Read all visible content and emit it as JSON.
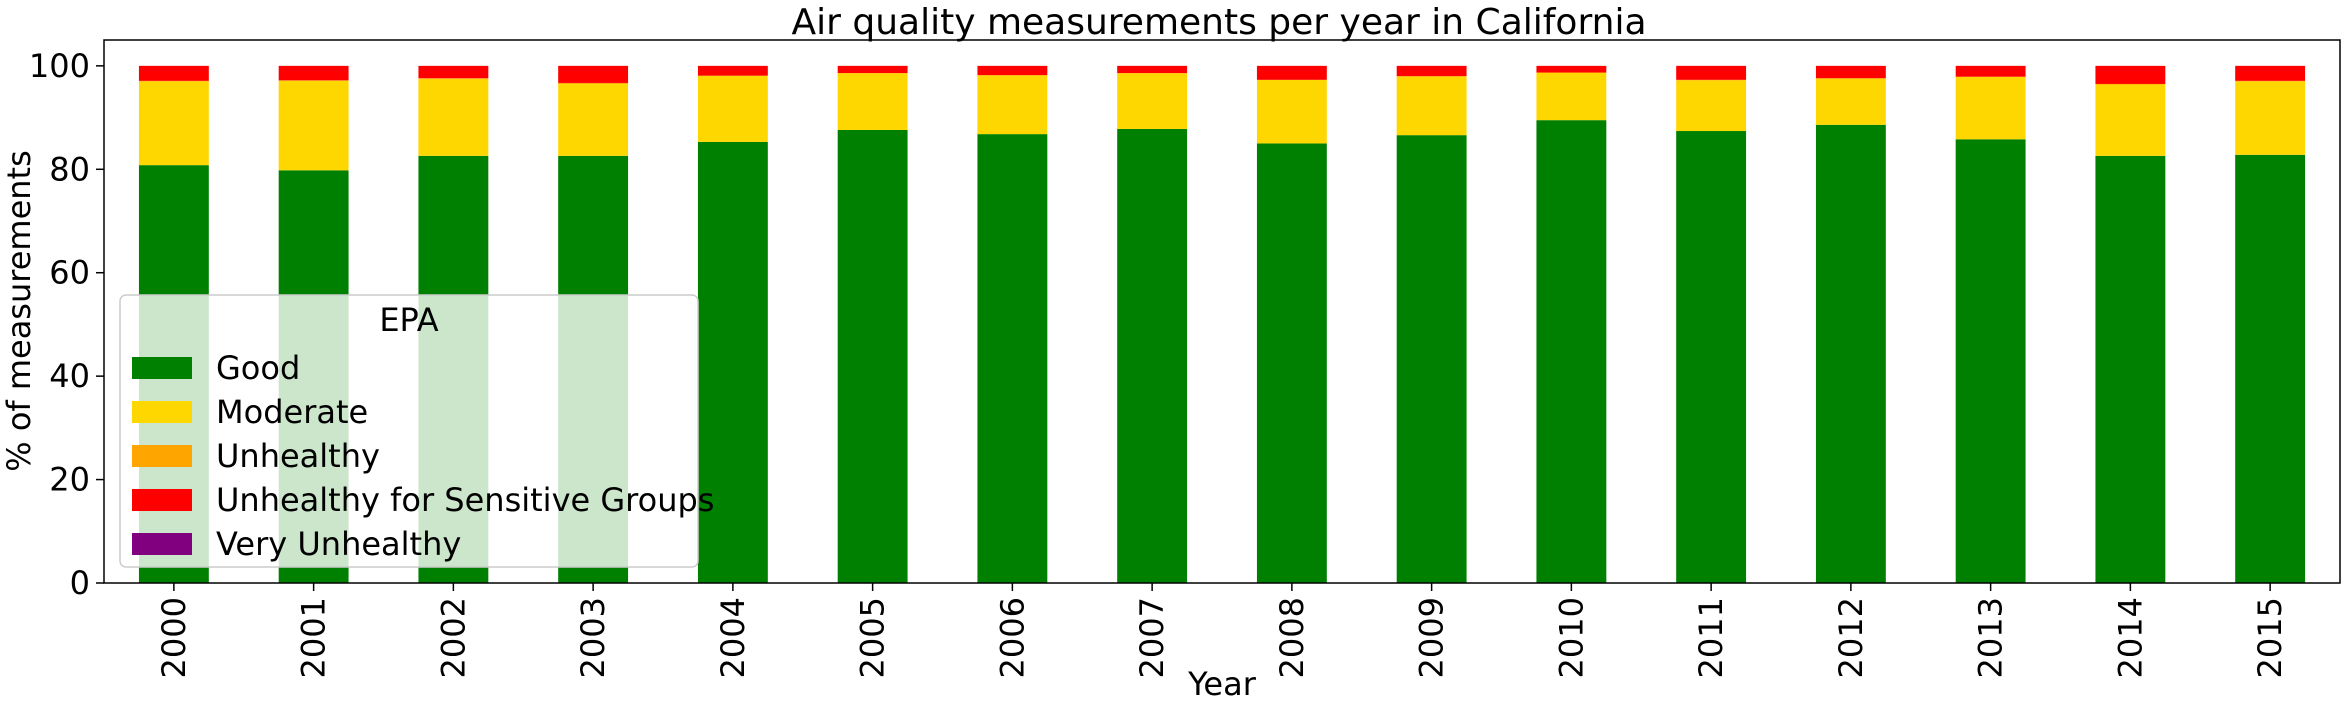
{
  "chart_data": {
    "type": "bar",
    "stacked": true,
    "title": "Air quality measurements per year in California",
    "xlabel": "Year",
    "ylabel": "% of measurements",
    "ylim": [
      0,
      105
    ],
    "yticks": [
      0,
      20,
      40,
      60,
      80,
      100
    ],
    "grid": false,
    "legend_title": "EPA",
    "legend_position": "lower-left",
    "categories": [
      "2000",
      "2001",
      "2002",
      "2003",
      "2004",
      "2005",
      "2006",
      "2007",
      "2008",
      "2009",
      "2010",
      "2011",
      "2012",
      "2013",
      "2014",
      "2015"
    ],
    "series": [
      {
        "name": "Good",
        "color": "#008000",
        "values": [
          80.8,
          79.8,
          82.6,
          82.6,
          85.3,
          87.6,
          86.8,
          87.8,
          85.0,
          86.6,
          89.5,
          87.4,
          88.6,
          85.8,
          82.6,
          82.8
        ]
      },
      {
        "name": "Moderate",
        "color": "#FFD700",
        "values": [
          16.2,
          17.3,
          14.9,
          13.9,
          12.8,
          11.0,
          11.4,
          10.8,
          12.3,
          11.4,
          9.2,
          9.8,
          9.0,
          12.1,
          13.8,
          14.2
        ]
      },
      {
        "name": "Unhealthy",
        "color": "#FFA500",
        "values": [
          0.1,
          0.1,
          0.1,
          0.2,
          0.0,
          0.0,
          0.0,
          0.0,
          0.0,
          0.0,
          0.0,
          0.1,
          0.0,
          0.0,
          0.1,
          0.1
        ]
      },
      {
        "name": "Unhealthy for Sensitive Groups",
        "color": "#FF0000",
        "values": [
          2.9,
          2.8,
          2.4,
          3.3,
          1.9,
          1.4,
          1.8,
          1.4,
          2.7,
          2.0,
          1.3,
          2.7,
          2.4,
          2.1,
          3.5,
          2.9
        ]
      },
      {
        "name": "Very Unhealthy",
        "color": "#800080",
        "values": [
          0,
          0,
          0,
          0,
          0,
          0,
          0,
          0,
          0,
          0,
          0,
          0,
          0,
          0,
          0,
          0
        ]
      }
    ]
  }
}
